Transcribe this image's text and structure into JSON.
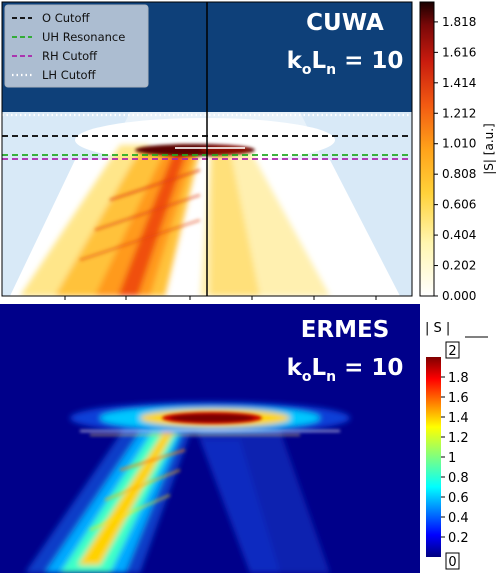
{
  "chart_data": [
    {
      "type": "heatmap",
      "title": "CUWA",
      "annotation": {
        "prefix": "k",
        "sub1": "o",
        "mid": "L",
        "sub2": "n",
        "suffix": " = 10"
      },
      "colorbar_label": "|S| [a.u.]",
      "colorbar_ticks": [
        "0.000",
        "0.202",
        "0.404",
        "0.606",
        "0.808",
        "1.010",
        "1.212",
        "1.414",
        "1.616",
        "1.818"
      ],
      "colorbar_range": [
        0,
        1.95
      ],
      "colormap": "hot_r",
      "legend_placement": "top-left",
      "legend": [
        {
          "name": "O Cutoff",
          "color": "#000000",
          "style": "dashed"
        },
        {
          "name": "UH Resonance",
          "color": "#22aa22",
          "style": "dashed"
        },
        {
          "name": "RH Cutoff",
          "color": "#aa22aa",
          "style": "dashed"
        },
        {
          "name": "LH Cutoff",
          "color": "#ffffff",
          "style": "dotted"
        }
      ],
      "cutoff_lines_y_fraction": {
        "LH Cutoff": 0.385,
        "O Cutoff": 0.455,
        "UH Resonance": 0.522,
        "RH Cutoff": 0.535
      },
      "vertical_line_x_fraction": 0.5
    },
    {
      "type": "heatmap",
      "title": "ERMES",
      "annotation": {
        "prefix": "k",
        "sub1": "o",
        "mid": "L",
        "sub2": "n",
        "suffix": " = 10"
      },
      "colorbar_label": "| S |",
      "colorbar_ticks": [
        "0.2",
        "0.4",
        "0.6",
        "0.8",
        "1",
        "1.2",
        "1.4",
        "1.6",
        "1.8"
      ],
      "colorbar_end_labels": {
        "min": "0",
        "max": "2"
      },
      "colorbar_range": [
        0,
        2
      ],
      "colormap": "jet"
    }
  ]
}
